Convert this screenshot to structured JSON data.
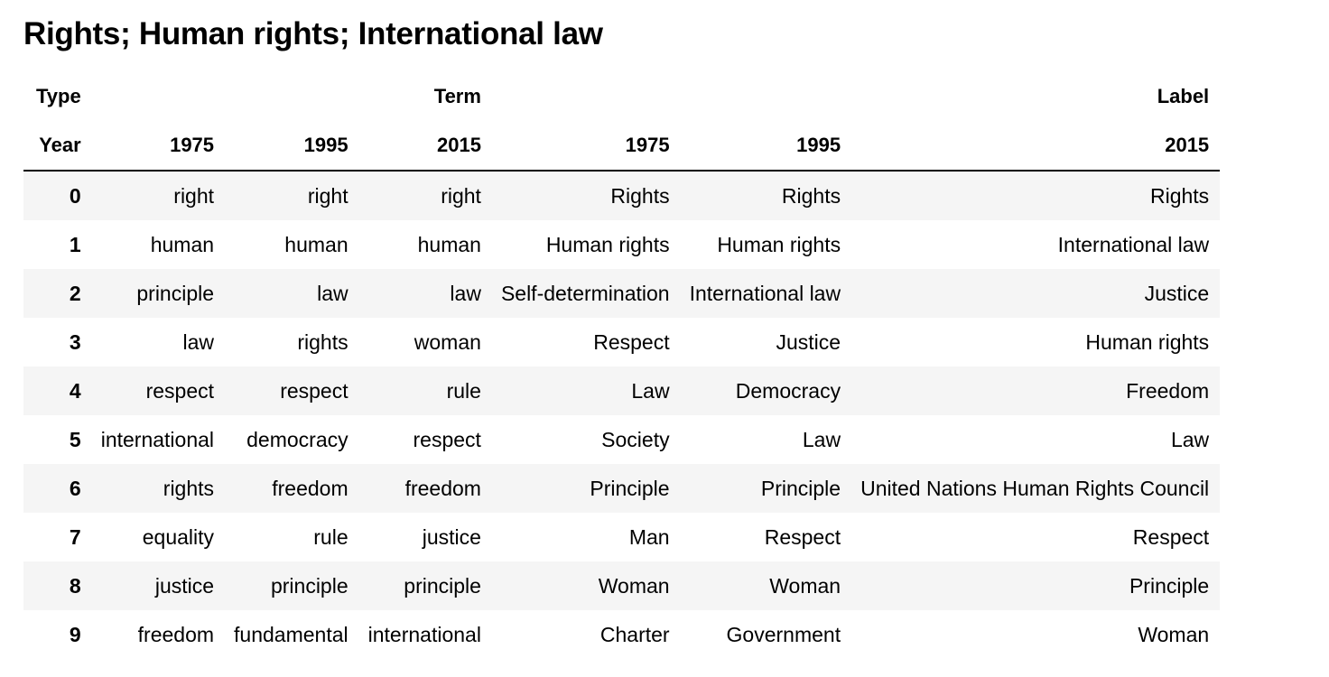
{
  "title": "Rights; Human rights; International law",
  "header": {
    "type_label": "Type",
    "year_label": "Year",
    "groups": [
      {
        "label": "Term",
        "years": [
          "1975",
          "1995",
          "2015"
        ]
      },
      {
        "label": "Label",
        "years": [
          "1975",
          "1995",
          "2015"
        ]
      }
    ]
  },
  "rows": [
    {
      "index": "0",
      "cells": [
        "right",
        "right",
        "right",
        "Rights",
        "Rights",
        "Rights"
      ]
    },
    {
      "index": "1",
      "cells": [
        "human",
        "human",
        "human",
        "Human rights",
        "Human rights",
        "International law"
      ]
    },
    {
      "index": "2",
      "cells": [
        "principle",
        "law",
        "law",
        "Self-determination",
        "International law",
        "Justice"
      ]
    },
    {
      "index": "3",
      "cells": [
        "law",
        "rights",
        "woman",
        "Respect",
        "Justice",
        "Human rights"
      ]
    },
    {
      "index": "4",
      "cells": [
        "respect",
        "respect",
        "rule",
        "Law",
        "Democracy",
        "Freedom"
      ]
    },
    {
      "index": "5",
      "cells": [
        "international",
        "democracy",
        "respect",
        "Society",
        "Law",
        "Law"
      ]
    },
    {
      "index": "6",
      "cells": [
        "rights",
        "freedom",
        "freedom",
        "Principle",
        "Principle",
        "United Nations Human Rights Council"
      ]
    },
    {
      "index": "7",
      "cells": [
        "equality",
        "rule",
        "justice",
        "Man",
        "Respect",
        "Respect"
      ]
    },
    {
      "index": "8",
      "cells": [
        "justice",
        "principle",
        "principle",
        "Woman",
        "Woman",
        "Principle"
      ]
    },
    {
      "index": "9",
      "cells": [
        "freedom",
        "fundamental",
        "international",
        "Charter",
        "Government",
        "Woman"
      ]
    }
  ]
}
